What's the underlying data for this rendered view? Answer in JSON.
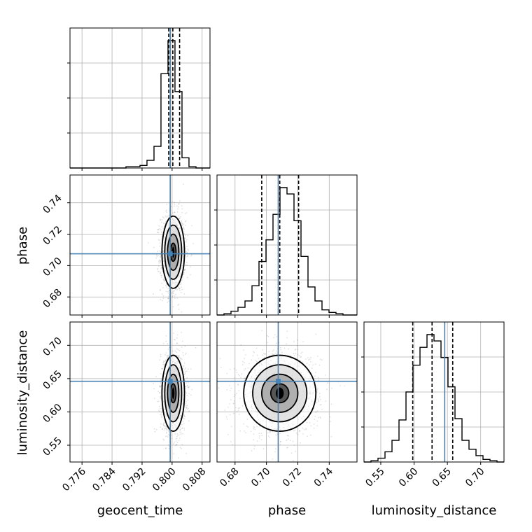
{
  "chart_data": {
    "type": "corner",
    "parameters": [
      "geocent_time",
      "phase",
      "luminosity_distance"
    ],
    "ranges": {
      "geocent_time": [
        0.7728,
        0.8101
      ],
      "phase": [
        0.6685,
        0.7577
      ],
      "luminosity_distance": [
        0.5248,
        0.735
      ]
    },
    "ticks": {
      "geocent_time": [
        "0.776",
        "0.784",
        "0.792",
        "0.800",
        "0.808"
      ],
      "phase": [
        "0.68",
        "0.70",
        "0.72",
        "0.74"
      ],
      "luminosity_distance": [
        "0.55",
        "0.60",
        "0.65",
        "0.70"
      ]
    },
    "truths": {
      "geocent_time": 0.7995,
      "phase": 0.7075,
      "luminosity_distance": 0.646
    },
    "quantiles": {
      "geocent_time": [
        0.7991,
        0.8002,
        0.802
      ],
      "phase": [
        0.697,
        0.7085,
        0.7205
      ],
      "luminosity_distance": [
        0.598,
        0.627,
        0.658
      ]
    },
    "histograms": {
      "geocent_time": {
        "bin_edges": [
          0.7728,
          0.77466,
          0.77653,
          0.77839,
          0.78026,
          0.78212,
          0.78399,
          0.78585,
          0.78772,
          0.78958,
          0.79145,
          0.79331,
          0.79518,
          0.79704,
          0.79891,
          0.80077,
          0.80264,
          0.8045,
          0.80637,
          0.80823,
          0.8101
        ],
        "counts": [
          0,
          0,
          0,
          0,
          0,
          0,
          0,
          0,
          1,
          1,
          2,
          6,
          17,
          74,
          100,
          60,
          8,
          1,
          0,
          0
        ]
      },
      "phase": {
        "bin_edges": [
          0.6685,
          0.67296,
          0.67742,
          0.68188,
          0.68634,
          0.6908,
          0.69526,
          0.69972,
          0.70418,
          0.70864,
          0.7131,
          0.71756,
          0.72202,
          0.72648,
          0.73094,
          0.7354,
          0.73986,
          0.74432,
          0.74878,
          0.75324,
          0.7577
        ],
        "counts": [
          0,
          1,
          3,
          6,
          11,
          23,
          42,
          59,
          79,
          100,
          95,
          74,
          46,
          22,
          11,
          4,
          2,
          1,
          0,
          0
        ]
      },
      "luminosity_distance": {
        "bin_edges": [
          0.5248,
          0.53531,
          0.54582,
          0.55633,
          0.56684,
          0.57735,
          0.58786,
          0.59837,
          0.60888,
          0.61939,
          0.6299,
          0.64041,
          0.65092,
          0.66143,
          0.67194,
          0.68245,
          0.69296,
          0.70347,
          0.71398,
          0.72449,
          0.735
        ],
        "counts": [
          0,
          1,
          3,
          8,
          17,
          33,
          55,
          76,
          90,
          100,
          95,
          82,
          59,
          34,
          17,
          10,
          5,
          2,
          1,
          0
        ]
      }
    },
    "grid": true
  }
}
